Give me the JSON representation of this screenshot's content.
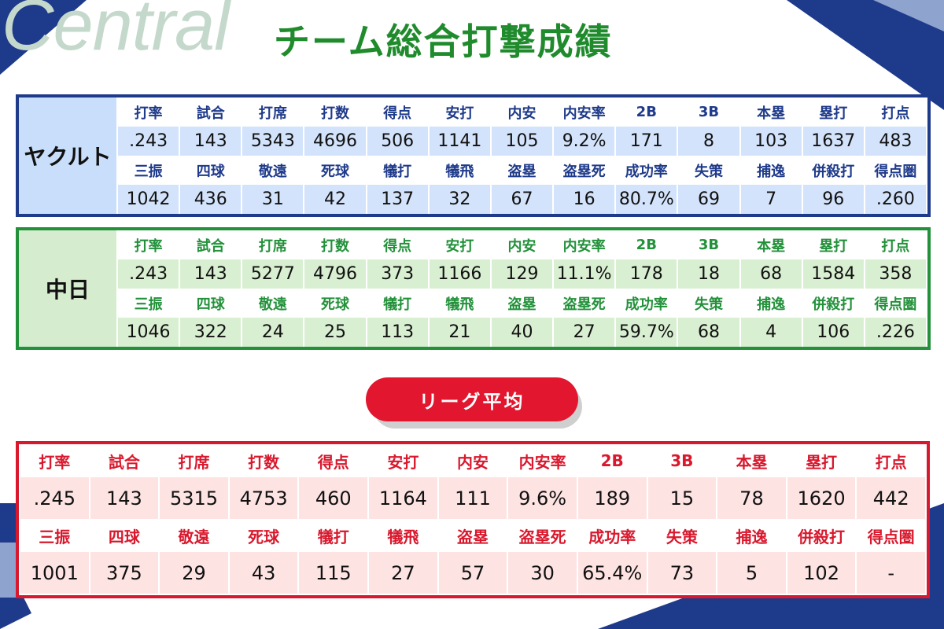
{
  "brand": "Central",
  "title": "チーム総合打撃成績",
  "colors": {
    "navy": "#1e3a8a",
    "green": "#22913a",
    "title_green": "#1f8b2c",
    "red": "#d9182d"
  },
  "labels_row1": [
    "打率",
    "試合",
    "打席",
    "打数",
    "得点",
    "安打",
    "内安",
    "内安率",
    "2B",
    "3B",
    "本塁",
    "塁打",
    "打点"
  ],
  "labels_row2": [
    "三振",
    "四球",
    "敬遠",
    "死球",
    "犠打",
    "犠飛",
    "盗塁",
    "盗塁死",
    "成功率",
    "失策",
    "捕逸",
    "併殺打",
    "得点圏"
  ],
  "teams": [
    {
      "name": "ヤクルト",
      "row1": [
        ".243",
        "143",
        "5343",
        "4696",
        "506",
        "1141",
        "105",
        "9.2%",
        "171",
        "8",
        "103",
        "1637",
        "483"
      ],
      "row2": [
        "1042",
        "436",
        "31",
        "42",
        "137",
        "32",
        "67",
        "16",
        "80.7%",
        "69",
        "7",
        "96",
        ".260"
      ]
    },
    {
      "name": "中日",
      "row1": [
        ".243",
        "143",
        "5277",
        "4796",
        "373",
        "1166",
        "129",
        "11.1%",
        "178",
        "18",
        "68",
        "1584",
        "358"
      ],
      "row2": [
        "1046",
        "322",
        "24",
        "25",
        "113",
        "21",
        "40",
        "27",
        "59.7%",
        "68",
        "4",
        "106",
        ".226"
      ]
    }
  ],
  "league": {
    "label": "リーグ平均",
    "row1": [
      ".245",
      "143",
      "5315",
      "4753",
      "460",
      "1164",
      "111",
      "9.6%",
      "189",
      "15",
      "78",
      "1620",
      "442"
    ],
    "row2": [
      "1001",
      "375",
      "29",
      "43",
      "115",
      "27",
      "57",
      "30",
      "65.4%",
      "73",
      "5",
      "102",
      "-"
    ]
  }
}
